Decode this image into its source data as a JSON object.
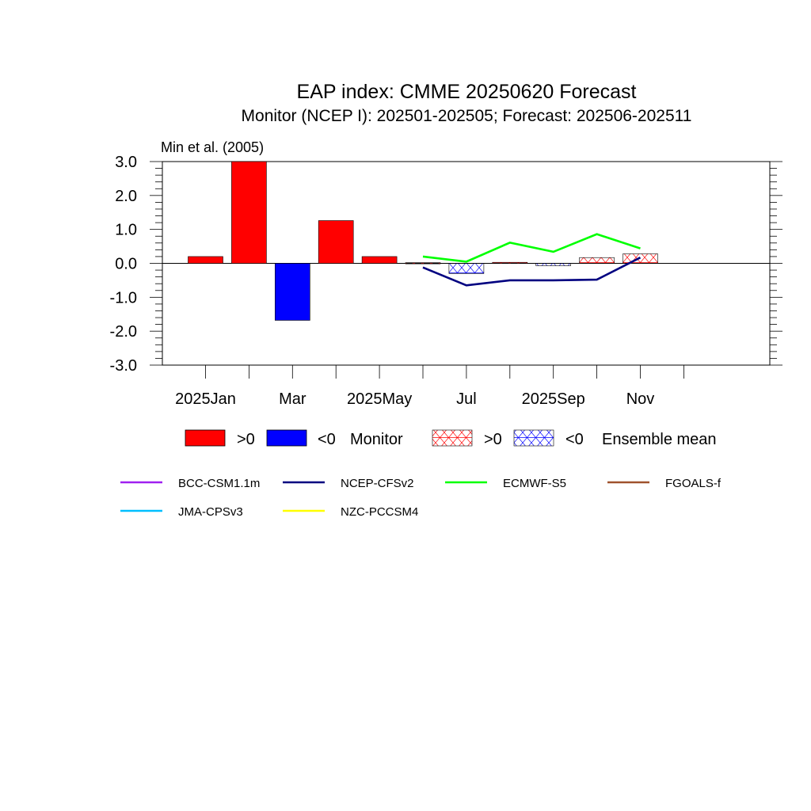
{
  "chart_data": {
    "type": "bar",
    "title": "EAP index: CMME 20250620 Forecast",
    "subtitle": "Monitor (NCEP I): 202501-202505; Forecast: 202506-202511",
    "corner_label": "Min et al. (2005)",
    "ylim": [
      -3,
      3
    ],
    "y_ticks": [
      "3.0",
      "2.0",
      "1.0",
      "0.0",
      "-1.0",
      "-2.0",
      "-3.0"
    ],
    "x_tick_labels": [
      "2025Jan",
      "Mar",
      "2025May",
      "Jul",
      "2025Sep",
      "Nov"
    ],
    "x_tick_months": [
      "2025-01",
      "2025-03",
      "2025-05",
      "2025-07",
      "2025-09",
      "2025-11"
    ],
    "months": [
      "2025-01",
      "2025-02",
      "2025-03",
      "2025-04",
      "2025-05",
      "2025-06",
      "2025-07",
      "2025-08",
      "2025-09",
      "2025-10",
      "2025-11"
    ],
    "monitor": {
      "months": [
        "2025-01",
        "2025-02",
        "2025-03",
        "2025-04",
        "2025-05"
      ],
      "values": [
        0.2,
        3.0,
        -1.68,
        1.26,
        0.2
      ]
    },
    "ensemble_mean": {
      "months": [
        "2025-06",
        "2025-07",
        "2025-08",
        "2025-09",
        "2025-10",
        "2025-11"
      ],
      "values": [
        0.02,
        -0.3,
        0.03,
        -0.07,
        0.17,
        0.28
      ]
    },
    "series": [
      {
        "name": "NCEP-CFSv2",
        "color": "#000080",
        "months": [
          "2025-06",
          "2025-07",
          "2025-08",
          "2025-09",
          "2025-10",
          "2025-11"
        ],
        "values": [
          -0.12,
          -0.65,
          -0.5,
          -0.5,
          -0.48,
          0.17
        ]
      },
      {
        "name": "ECMWF-S5",
        "color": "#00ff00",
        "months": [
          "2025-06",
          "2025-07",
          "2025-08",
          "2025-09",
          "2025-10",
          "2025-11"
        ],
        "values": [
          0.2,
          0.05,
          0.61,
          0.34,
          0.86,
          0.44
        ]
      }
    ],
    "colors": {
      "positive": "#ff0000",
      "negative": "#0000ff"
    },
    "grid": false,
    "legend_position": "bottom"
  },
  "legend": {
    "pos_label": ">0",
    "neg_label": "<0",
    "monitor_label": "Monitor",
    "ens_pos_label": ">0",
    "ens_neg_label": "<0",
    "ensemble_label": "Ensemble mean",
    "models": [
      {
        "name": "BCC-CSM1.1m",
        "color": "#a020f0"
      },
      {
        "name": "NCEP-CFSv2",
        "color": "#000080"
      },
      {
        "name": "ECMWF-S5",
        "color": "#00ff00"
      },
      {
        "name": "FGOALS-f",
        "color": "#a0522d"
      },
      {
        "name": "JMA-CPSv3",
        "color": "#00bfff"
      },
      {
        "name": "NZC-PCCSM4",
        "color": "#ffff00"
      }
    ]
  }
}
